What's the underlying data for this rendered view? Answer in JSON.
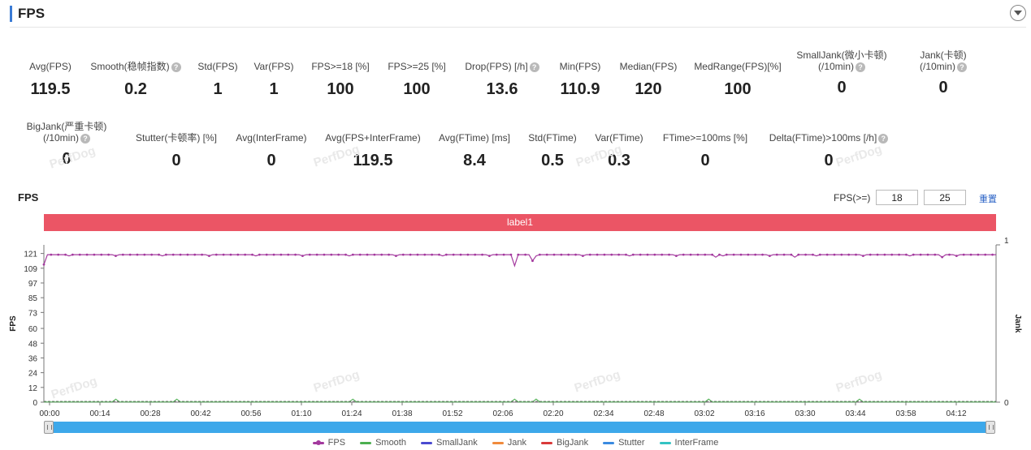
{
  "header": {
    "title": "FPS"
  },
  "metrics_row1": [
    {
      "label": "Avg(FPS)",
      "value": "119.5",
      "help": false
    },
    {
      "label": "Smooth(稳帧指数)",
      "value": "0.2",
      "help": true
    },
    {
      "label": "Std(FPS)",
      "value": "1",
      "help": false
    },
    {
      "label": "Var(FPS)",
      "value": "1",
      "help": false
    },
    {
      "label": "FPS>=18 [%]",
      "value": "100",
      "help": false
    },
    {
      "label": "FPS>=25 [%]",
      "value": "100",
      "help": false
    },
    {
      "label": "Drop(FPS) [/h]",
      "value": "13.6",
      "help": true
    },
    {
      "label": "Min(FPS)",
      "value": "110.9",
      "help": false
    },
    {
      "label": "Median(FPS)",
      "value": "120",
      "help": false
    },
    {
      "label": "MedRange(FPS)[%]",
      "value": "100",
      "help": false
    },
    {
      "label": "SmallJank(微小卡顿)",
      "label2": "(/10min)",
      "value": "0",
      "help": true
    },
    {
      "label": "Jank(卡顿)",
      "label2": "(/10min)",
      "value": "0",
      "help": true
    }
  ],
  "metrics_row2": [
    {
      "label": "BigJank(严重卡顿)",
      "label2": "(/10min)",
      "value": "0",
      "help": true
    },
    {
      "label": "Stutter(卡顿率) [%]",
      "value": "0",
      "help": false
    },
    {
      "label": "Avg(InterFrame)",
      "value": "0",
      "help": false
    },
    {
      "label": "Avg(FPS+InterFrame)",
      "value": "119.5",
      "help": false
    },
    {
      "label": "Avg(FTime) [ms]",
      "value": "8.4",
      "help": false
    },
    {
      "label": "Std(FTime)",
      "value": "0.5",
      "help": false
    },
    {
      "label": "Var(FTime)",
      "value": "0.3",
      "help": false
    },
    {
      "label": "FTime>=100ms [%]",
      "value": "0",
      "help": false
    },
    {
      "label": "Delta(FTime)>100ms [/h]",
      "value": "0",
      "help": true
    }
  ],
  "watermark_text": "PerfDog",
  "chart_section": {
    "title": "FPS",
    "threshold_label": "FPS(>=)",
    "threshold1": "18",
    "threshold2": "25",
    "reset_label": "重置",
    "label_band": "label1"
  },
  "chart_data": {
    "type": "line",
    "y_axis_left": {
      "title": "FPS",
      "ticks": [
        0,
        12,
        24,
        36,
        48,
        60,
        73,
        85,
        97,
        109,
        121
      ],
      "range": [
        0,
        128
      ]
    },
    "y_axis_right": {
      "title": "Jank",
      "ticks": [
        0,
        1
      ],
      "range": [
        0,
        1
      ]
    },
    "x_ticks": [
      "00:00",
      "00:14",
      "00:28",
      "00:42",
      "00:56",
      "01:10",
      "01:24",
      "01:38",
      "01:52",
      "02:06",
      "02:20",
      "02:34",
      "02:48",
      "03:02",
      "03:16",
      "03:30",
      "03:44",
      "03:58",
      "04:12"
    ],
    "duration_seconds": 265,
    "series": [
      {
        "name": "FPS",
        "color": "#a3399e",
        "baseline": 120,
        "dips": [
          {
            "t": 0,
            "v": 112
          },
          {
            "t": 20,
            "v": 117
          },
          {
            "t": 131,
            "v": 111
          },
          {
            "t": 136,
            "v": 115
          },
          {
            "t": 187,
            "v": 118
          },
          {
            "t": 209,
            "v": 118
          },
          {
            "t": 250,
            "v": 118
          }
        ]
      },
      {
        "name": "Smooth",
        "color": "#4caf50",
        "baseline": 0.2,
        "bumps": [
          20,
          37,
          86,
          131,
          137,
          185,
          227
        ]
      },
      {
        "name": "SmallJank",
        "color": "#4a4ad0"
      },
      {
        "name": "Jank",
        "color": "#f08a3c"
      },
      {
        "name": "BigJank",
        "color": "#d93a3a"
      },
      {
        "name": "Stutter",
        "color": "#3a8ae0"
      },
      {
        "name": "InterFrame",
        "color": "#33c3c3"
      }
    ]
  }
}
